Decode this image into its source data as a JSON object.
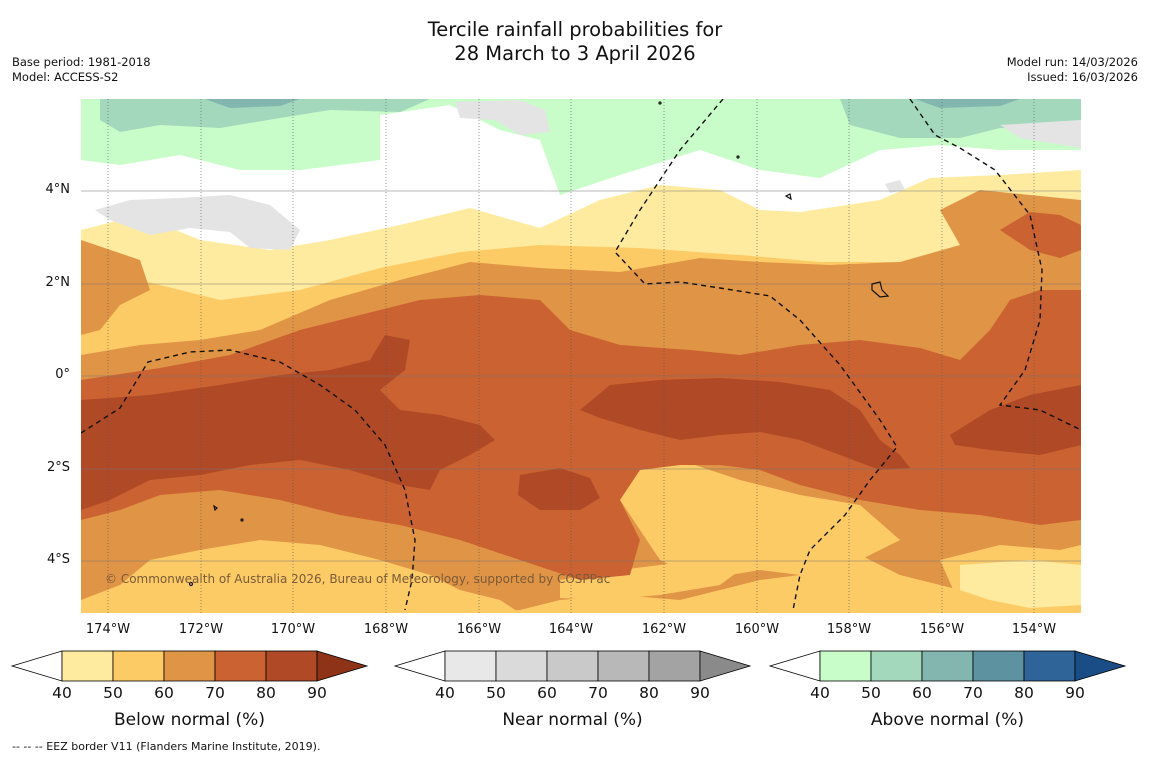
{
  "title_line1": "Tercile rainfall probabilities for",
  "title_line2": "28 March to 3 April 2026",
  "meta_left": {
    "base_period": "Base period: 1981-2018",
    "model": "Model: ACCESS-S2"
  },
  "meta_right": {
    "model_run": "Model run: 14/03/2026",
    "issued": "Issued: 16/03/2026"
  },
  "map": {
    "lon_labels": [
      "174°W",
      "172°W",
      "170°W",
      "168°W",
      "166°W",
      "164°W",
      "162°W",
      "160°W",
      "158°W",
      "156°W",
      "154°W"
    ],
    "lat_labels": [
      "4°N",
      "2°N",
      "0°",
      "2°S",
      "4°S"
    ],
    "copyright": "© Commonwealth of Australia 2026, Bureau of Meteorology, supported by COSPPac"
  },
  "colorbars": [
    {
      "title": "Below normal (%)",
      "ticks": [
        "40",
        "50",
        "60",
        "70",
        "80",
        "90"
      ],
      "colors": [
        "#ffffff",
        "#feeb9f",
        "#fdcb66",
        "#e09445",
        "#cb6231",
        "#b04a26",
        "#8f3318"
      ]
    },
    {
      "title": "Near normal (%)",
      "ticks": [
        "40",
        "50",
        "60",
        "70",
        "80",
        "90"
      ],
      "colors": [
        "#ffffff",
        "#e8e8e8",
        "#dadada",
        "#c9c9c9",
        "#b8b8b8",
        "#a3a3a3",
        "#8a8a8a"
      ]
    },
    {
      "title": "Above normal (%)",
      "ticks": [
        "40",
        "50",
        "60",
        "70",
        "80",
        "90"
      ],
      "colors": [
        "#ffffff",
        "#c8fcc8",
        "#a3d8bd",
        "#82b6ae",
        "#5d93a0",
        "#2f6498",
        "#1a4d86"
      ]
    }
  ],
  "footnote": "-- -- -- EEZ border V11 (Flanders Marine Institute, 2019)."
}
